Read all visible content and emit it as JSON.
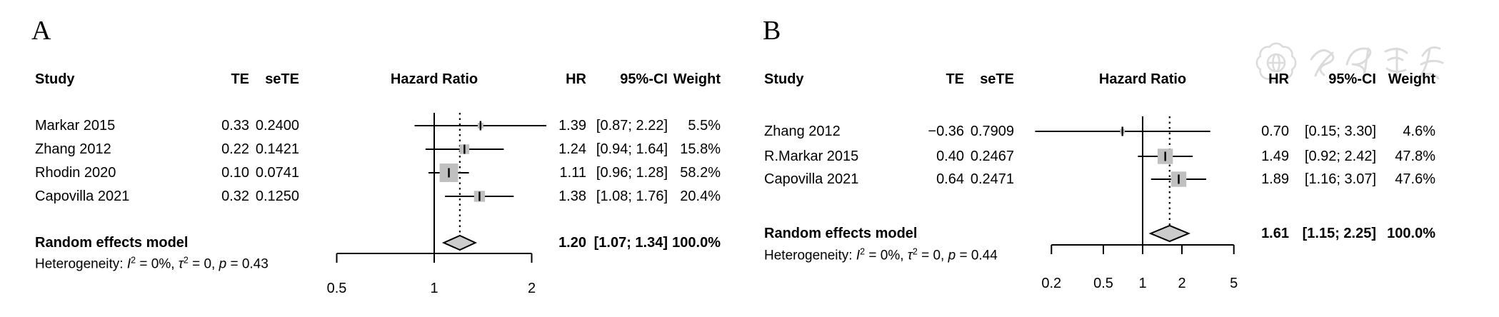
{
  "figure": {
    "background": "#ffffff"
  },
  "watermark": {
    "name": "chinese-medical-association-seal-watermark",
    "color": "#dcdcdc"
  },
  "colors": {
    "square": "#c0c0c0",
    "diamond_fill": "#cccccc",
    "line": "#000000"
  },
  "chart_data": [
    {
      "type": "forest",
      "panel_label": "A",
      "effect_measure": "Hazard Ratio",
      "columns": {
        "study": "Study",
        "te": "TE",
        "sete": "seTE",
        "plot": "Hazard Ratio",
        "hr": "HR",
        "ci": "95%-CI",
        "weight": "Weight"
      },
      "studies": [
        {
          "study": "Markar 2015",
          "te": "0.33",
          "sete": "0.2400",
          "hr": 1.39,
          "ci_low": 0.87,
          "ci_high": 2.22,
          "hr_label": "1.39",
          "ci_label": "[0.87; 2.22]",
          "weight_pct": 5.5,
          "weight_label": "5.5%"
        },
        {
          "study": "Zhang 2012",
          "te": "0.22",
          "sete": "0.1421",
          "hr": 1.24,
          "ci_low": 0.94,
          "ci_high": 1.64,
          "hr_label": "1.24",
          "ci_label": "[0.94; 1.64]",
          "weight_pct": 15.8,
          "weight_label": "15.8%"
        },
        {
          "study": "Rhodin 2020",
          "te": "0.10",
          "sete": "0.0741",
          "hr": 1.11,
          "ci_low": 0.96,
          "ci_high": 1.28,
          "hr_label": "1.11",
          "ci_label": "[0.96; 1.28]",
          "weight_pct": 58.2,
          "weight_label": "58.2%"
        },
        {
          "study": "Capovilla 2021",
          "te": "0.32",
          "sete": "0.1250",
          "hr": 1.38,
          "ci_low": 1.08,
          "ci_high": 1.76,
          "hr_label": "1.38",
          "ci_label": "[1.08; 1.76]",
          "weight_pct": 20.4,
          "weight_label": "20.4%"
        }
      ],
      "summary": {
        "label": "Random effects model",
        "hr": 1.2,
        "ci_low": 1.07,
        "ci_high": 1.34,
        "hr_label": "1.20",
        "ci_label": "[1.07; 1.34]",
        "weight_label": "100.0%"
      },
      "heterogeneity": {
        "prefix": "Heterogeneity: ",
        "i_sym": "I",
        "i_sup": "2",
        "i_rest": " = 0%, ",
        "tau_sym": "τ",
        "tau_sup": "2",
        "tau_rest": " = 0, ",
        "p_sym": "p",
        "p_rest": " = 0.43"
      },
      "axis": {
        "scale": "log",
        "ticks": [
          0.5,
          1,
          2
        ],
        "tick_labels": [
          "0.5",
          "1",
          "2"
        ],
        "ref_line": 1,
        "xlim": [
          0.5,
          2
        ]
      }
    },
    {
      "type": "forest",
      "panel_label": "B",
      "effect_measure": "Hazard Ratio",
      "columns": {
        "study": "Study",
        "te": "TE",
        "sete": "seTE",
        "plot": "Hazard Ratio",
        "hr": "HR",
        "ci": "95%-CI",
        "weight": "Weight"
      },
      "studies": [
        {
          "study": "Zhang 2012",
          "te": "−0.36",
          "sete": "0.7909",
          "hr": 0.7,
          "ci_low": 0.15,
          "ci_high": 3.3,
          "hr_label": "0.70",
          "ci_label": "[0.15; 3.30]",
          "weight_pct": 4.6,
          "weight_label": "4.6%"
        },
        {
          "study": "R.Markar 2015",
          "te": "0.40",
          "sete": "0.2467",
          "hr": 1.49,
          "ci_low": 0.92,
          "ci_high": 2.42,
          "hr_label": "1.49",
          "ci_label": "[0.92; 2.42]",
          "weight_pct": 47.8,
          "weight_label": "47.8%"
        },
        {
          "study": "Capovilla 2021",
          "te": "0.64",
          "sete": "0.2471",
          "hr": 1.89,
          "ci_low": 1.16,
          "ci_high": 3.07,
          "hr_label": "1.89",
          "ci_label": "[1.16; 3.07]",
          "weight_pct": 47.6,
          "weight_label": "47.6%"
        }
      ],
      "summary": {
        "label": "Random effects model",
        "hr": 1.61,
        "ci_low": 1.15,
        "ci_high": 2.25,
        "hr_label": "1.61",
        "ci_label": "[1.15; 2.25]",
        "weight_label": "100.0%"
      },
      "heterogeneity": {
        "prefix": "Heterogeneity: ",
        "i_sym": "I",
        "i_sup": "2",
        "i_rest": " = 0%, ",
        "tau_sym": "τ",
        "tau_sup": "2",
        "tau_rest": " = 0, ",
        "p_sym": "p",
        "p_rest": " = 0.44"
      },
      "axis": {
        "scale": "log",
        "ticks": [
          0.2,
          0.5,
          1,
          2,
          5
        ],
        "tick_labels": [
          "0.2",
          "0.5",
          "1",
          "2",
          "5"
        ],
        "ref_line": 1,
        "xlim": [
          0.2,
          5
        ]
      }
    }
  ]
}
